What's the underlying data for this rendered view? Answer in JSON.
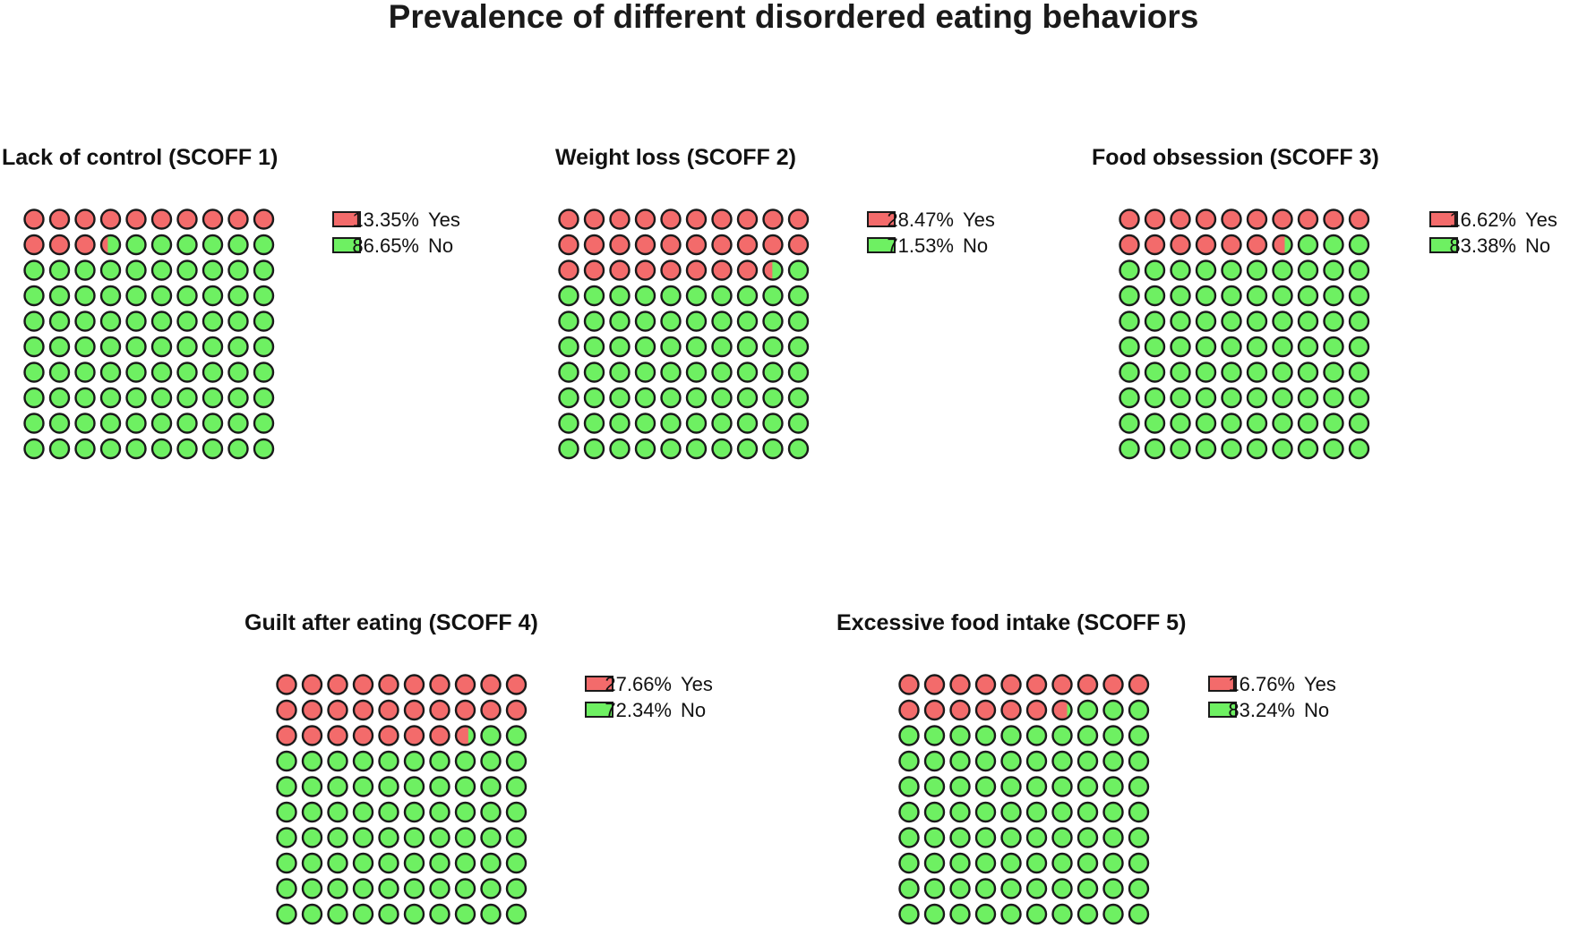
{
  "chart_data": {
    "type": "waffle",
    "title": "Prevalence of different disordered eating behaviors",
    "colors": {
      "yes": "#f36b6b",
      "no": "#6ef062",
      "outline": "#1a1a1a"
    },
    "panels": [
      {
        "title": "Lack of control (SCOFF 1)",
        "series": [
          {
            "name": "Yes",
            "value": 13.35,
            "label": "13.35%"
          },
          {
            "name": "No",
            "value": 86.65,
            "label": "86.65%"
          }
        ]
      },
      {
        "title": "Weight loss (SCOFF 2)",
        "series": [
          {
            "name": "Yes",
            "value": 28.47,
            "label": "28.47%"
          },
          {
            "name": "No",
            "value": 71.53,
            "label": "71.53%"
          }
        ]
      },
      {
        "title": "Food obsession (SCOFF 3)",
        "series": [
          {
            "name": "Yes",
            "value": 16.62,
            "label": "16.62%"
          },
          {
            "name": "No",
            "value": 83.38,
            "label": "83.38%"
          }
        ]
      },
      {
        "title": "Guilt after eating (SCOFF 4)",
        "series": [
          {
            "name": "Yes",
            "value": 27.66,
            "label": "27.66%"
          },
          {
            "name": "No",
            "value": 72.34,
            "label": "72.34%"
          }
        ]
      },
      {
        "title": "Excessive food intake (SCOFF 5)",
        "series": [
          {
            "name": "Yes",
            "value": 16.76,
            "label": "16.76%"
          },
          {
            "name": "No",
            "value": 83.24,
            "label": "83.24%"
          }
        ]
      }
    ]
  }
}
